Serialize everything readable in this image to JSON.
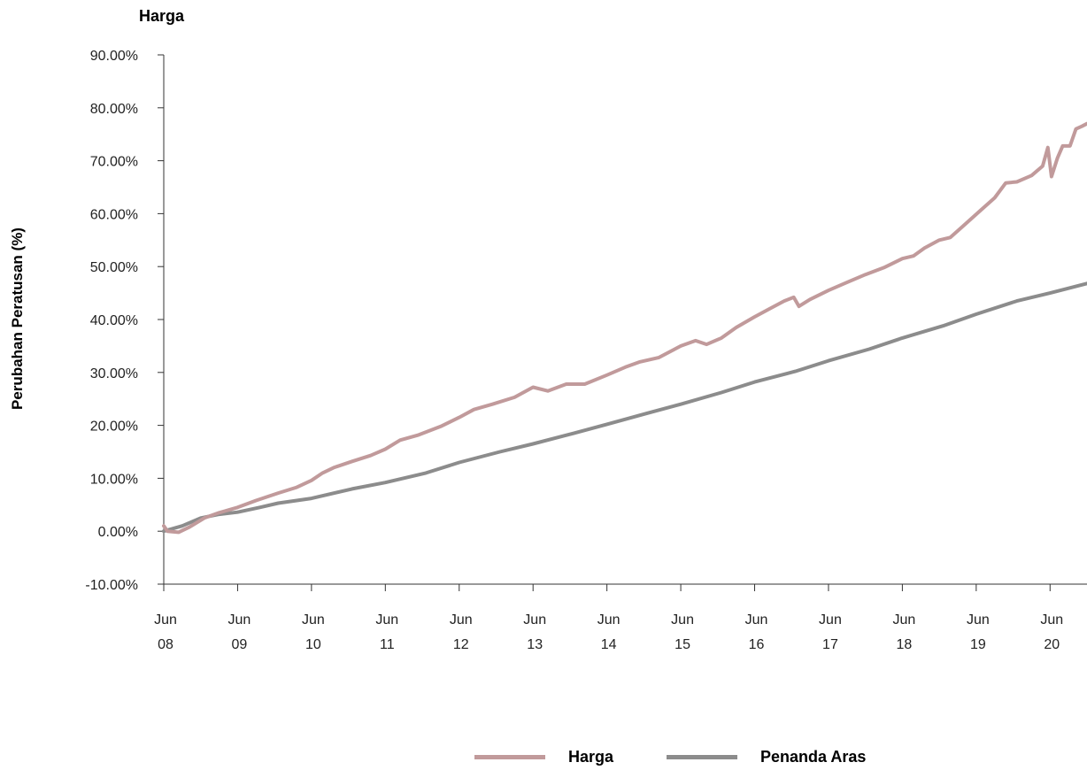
{
  "chart_data": {
    "type": "line",
    "title": "Harga",
    "xlabel": "",
    "ylabel": "Perubahan Peratusan (%)",
    "ylim": [
      -10,
      90
    ],
    "xlim": [
      2008.45,
      2020.95
    ],
    "yticks": [
      "90.00%",
      "80.00%",
      "70.00%",
      "60.00%",
      "50.00%",
      "40.00%",
      "30.00%",
      "20.00%",
      "10.00%",
      "0.00%",
      "-10.00%"
    ],
    "xticks": [
      {
        "month": "Jun",
        "year": "08"
      },
      {
        "month": "Jun",
        "year": "09"
      },
      {
        "month": "Jun",
        "year": "10"
      },
      {
        "month": "Jun",
        "year": "11"
      },
      {
        "month": "Jun",
        "year": "12"
      },
      {
        "month": "Jun",
        "year": "13"
      },
      {
        "month": "Jun",
        "year": "14"
      },
      {
        "month": "Jun",
        "year": "15"
      },
      {
        "month": "Jun",
        "year": "16"
      },
      {
        "month": "Jun",
        "year": "17"
      },
      {
        "month": "Jun",
        "year": "18"
      },
      {
        "month": "Jun",
        "year": "19"
      },
      {
        "month": "Jun",
        "year": "20"
      }
    ],
    "grid": false,
    "legend_position": "bottom",
    "series": [
      {
        "name": "Harga",
        "color": "#c19a9b",
        "points": [
          [
            2008.45,
            1.0
          ],
          [
            2008.5,
            0.0
          ],
          [
            2008.65,
            -0.2
          ],
          [
            2008.8,
            0.8
          ],
          [
            2009.0,
            2.5
          ],
          [
            2009.2,
            3.5
          ],
          [
            2009.45,
            4.5
          ],
          [
            2009.7,
            5.8
          ],
          [
            2010.0,
            7.2
          ],
          [
            2010.25,
            8.3
          ],
          [
            2010.45,
            9.6
          ],
          [
            2010.6,
            11.0
          ],
          [
            2010.75,
            12.0
          ],
          [
            2011.0,
            13.2
          ],
          [
            2011.25,
            14.3
          ],
          [
            2011.45,
            15.5
          ],
          [
            2011.65,
            17.2
          ],
          [
            2011.9,
            18.2
          ],
          [
            2012.2,
            19.8
          ],
          [
            2012.45,
            21.5
          ],
          [
            2012.65,
            23.0
          ],
          [
            2012.9,
            24.0
          ],
          [
            2013.2,
            25.3
          ],
          [
            2013.45,
            27.2
          ],
          [
            2013.65,
            26.5
          ],
          [
            2013.9,
            27.8
          ],
          [
            2014.15,
            27.8
          ],
          [
            2014.45,
            29.5
          ],
          [
            2014.7,
            31.0
          ],
          [
            2014.9,
            32.0
          ],
          [
            2015.15,
            32.8
          ],
          [
            2015.45,
            35.0
          ],
          [
            2015.65,
            36.0
          ],
          [
            2015.8,
            35.3
          ],
          [
            2016.0,
            36.5
          ],
          [
            2016.2,
            38.5
          ],
          [
            2016.45,
            40.5
          ],
          [
            2016.65,
            42.0
          ],
          [
            2016.85,
            43.5
          ],
          [
            2016.98,
            44.2
          ],
          [
            2017.05,
            42.5
          ],
          [
            2017.2,
            43.8
          ],
          [
            2017.45,
            45.5
          ],
          [
            2017.7,
            47.0
          ],
          [
            2017.95,
            48.5
          ],
          [
            2018.2,
            49.8
          ],
          [
            2018.45,
            51.5
          ],
          [
            2018.6,
            52.0
          ],
          [
            2018.75,
            53.5
          ],
          [
            2018.95,
            55.0
          ],
          [
            2019.1,
            55.5
          ],
          [
            2019.3,
            58.0
          ],
          [
            2019.5,
            60.5
          ],
          [
            2019.7,
            63.0
          ],
          [
            2019.85,
            65.8
          ],
          [
            2020.0,
            66.0
          ],
          [
            2020.2,
            67.2
          ],
          [
            2020.35,
            69.0
          ],
          [
            2020.42,
            72.5
          ],
          [
            2020.47,
            67.0
          ],
          [
            2020.55,
            70.5
          ],
          [
            2020.62,
            72.8
          ],
          [
            2020.72,
            72.8
          ],
          [
            2020.8,
            76.0
          ],
          [
            2020.88,
            76.5
          ],
          [
            2020.95,
            77.0
          ]
        ]
      },
      {
        "name": "Penanda Aras",
        "color": "#8c8c8c",
        "points": [
          [
            2008.45,
            0.0
          ],
          [
            2008.7,
            1.0
          ],
          [
            2008.95,
            2.5
          ],
          [
            2009.2,
            3.2
          ],
          [
            2009.45,
            3.6
          ],
          [
            2009.75,
            4.5
          ],
          [
            2010.0,
            5.3
          ],
          [
            2010.45,
            6.2
          ],
          [
            2011.0,
            8.0
          ],
          [
            2011.45,
            9.2
          ],
          [
            2012.0,
            11.0
          ],
          [
            2012.45,
            13.0
          ],
          [
            2013.0,
            15.0
          ],
          [
            2013.45,
            16.5
          ],
          [
            2014.0,
            18.5
          ],
          [
            2014.45,
            20.2
          ],
          [
            2015.0,
            22.3
          ],
          [
            2015.45,
            24.0
          ],
          [
            2016.0,
            26.2
          ],
          [
            2016.45,
            28.2
          ],
          [
            2017.0,
            30.2
          ],
          [
            2017.45,
            32.2
          ],
          [
            2018.0,
            34.4
          ],
          [
            2018.45,
            36.5
          ],
          [
            2019.0,
            38.8
          ],
          [
            2019.45,
            41.0
          ],
          [
            2020.0,
            43.5
          ],
          [
            2020.45,
            45.0
          ],
          [
            2020.95,
            46.8
          ]
        ]
      }
    ]
  }
}
